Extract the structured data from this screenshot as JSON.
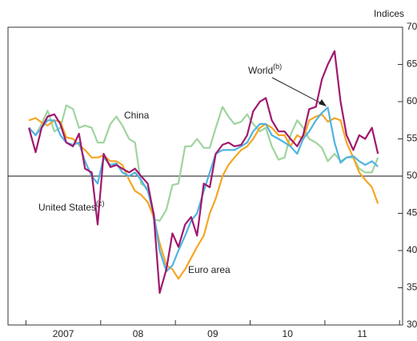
{
  "chart_data": {
    "type": "line",
    "y_unit": "Indices",
    "x": [
      2007.04,
      2007.13,
      2007.21,
      2007.29,
      2007.38,
      2007.46,
      2007.54,
      2007.63,
      2007.71,
      2007.79,
      2007.88,
      2007.96,
      2008.04,
      2008.13,
      2008.21,
      2008.29,
      2008.38,
      2008.46,
      2008.54,
      2008.63,
      2008.71,
      2008.79,
      2008.88,
      2008.96,
      2009.04,
      2009.13,
      2009.21,
      2009.29,
      2009.38,
      2009.46,
      2009.54,
      2009.63,
      2009.71,
      2009.79,
      2009.88,
      2009.96,
      2010.04,
      2010.13,
      2010.21,
      2010.29,
      2010.38,
      2010.46,
      2010.54,
      2010.63,
      2010.71,
      2010.79,
      2010.88,
      2010.96,
      2011.04,
      2011.13,
      2011.21,
      2011.29,
      2011.38,
      2011.46,
      2011.54,
      2011.63,
      2011.71
    ],
    "series": [
      {
        "name": "China",
        "color": "#9fd49e",
        "values": [
          56.5,
          55.5,
          57,
          58.8,
          56,
          56.5,
          59.5,
          59,
          56.5,
          56.8,
          56.5,
          54.5,
          54.5,
          57,
          58,
          56.8,
          55,
          54.5,
          49,
          48.4,
          44.2,
          44,
          45.5,
          48.8,
          49,
          54,
          54,
          55,
          53.8,
          53.8,
          56.5,
          59.3,
          58,
          57,
          57.3,
          58.3,
          57,
          56,
          56.5,
          54,
          52.2,
          52.5,
          55.5,
          57.5,
          56.5,
          55,
          54.5,
          53.8,
          52,
          53,
          52,
          52.5,
          52.5,
          51,
          50.5,
          50.5,
          52.5
        ]
      },
      {
        "name": "Euro area",
        "color": "#f5a623",
        "values": [
          57.5,
          57.8,
          57.2,
          56.8,
          57.5,
          57.3,
          55.2,
          55,
          54.2,
          53.5,
          52.5,
          52.5,
          52.8,
          52,
          52,
          51.5,
          49.5,
          48,
          47.5,
          46.5,
          44.5,
          41,
          38,
          37.5,
          36.2,
          37.5,
          39,
          40.5,
          42,
          45,
          47,
          50,
          51.5,
          52.5,
          53.5,
          54,
          55,
          56.5,
          57,
          56.5,
          55.5,
          55.5,
          54,
          55.5,
          55,
          57.5,
          58,
          58.3,
          57.3,
          57.8,
          57.5,
          54.5,
          52.5,
          50.5,
          49.5,
          48.5,
          46.3
        ]
      },
      {
        "name": "World",
        "name_note": "(b)",
        "color": "#4fb3e3",
        "values": [
          56.5,
          55.5,
          56.5,
          57.5,
          57.5,
          55.5,
          54.5,
          54.2,
          54.5,
          52,
          50,
          49,
          52.5,
          51.5,
          51.7,
          50.5,
          50,
          50.5,
          49.5,
          48,
          45,
          40,
          37.2,
          38,
          40,
          42,
          44,
          45,
          48,
          50.5,
          53,
          53.5,
          53.5,
          53.5,
          54,
          54.5,
          56,
          57,
          57,
          55.5,
          55,
          54.5,
          54,
          53,
          55,
          56,
          57.5,
          58.5,
          59.2,
          54.5,
          51.8,
          52.5,
          52.7,
          52,
          51.5,
          52,
          51.3
        ]
      },
      {
        "name": "United States",
        "name_note": "(c)",
        "color": "#a0186e",
        "values": [
          56.5,
          53.2,
          56.5,
          58,
          58.3,
          57,
          54.5,
          54,
          55.7,
          51,
          50.5,
          43.5,
          53,
          51.2,
          51.5,
          51,
          50.5,
          51,
          50,
          49,
          44.8,
          34.3,
          37.5,
          42.3,
          40.5,
          43.5,
          44.5,
          42,
          49,
          48.5,
          53,
          54.2,
          54.5,
          54,
          54.2,
          55.5,
          58.7,
          60,
          60.5,
          57.5,
          56,
          56,
          55,
          54,
          55.5,
          59,
          59.3,
          63,
          65,
          66.8,
          60,
          55.5,
          53.5,
          55.5,
          55,
          56.5,
          53
        ]
      }
    ],
    "xlim": [
      2006.76,
      2012.04
    ],
    "xticks": [
      {
        "value": 2007.5,
        "label": "2007"
      },
      {
        "value": 2008.5,
        "label": "08"
      },
      {
        "value": 2009.5,
        "label": "09"
      },
      {
        "value": 2010.5,
        "label": "10"
      },
      {
        "value": 2011.5,
        "label": "11"
      }
    ],
    "ylim": [
      30,
      70
    ],
    "yticks": [
      30,
      35,
      40,
      45,
      50,
      55,
      60,
      65,
      70
    ],
    "hline": 50
  }
}
